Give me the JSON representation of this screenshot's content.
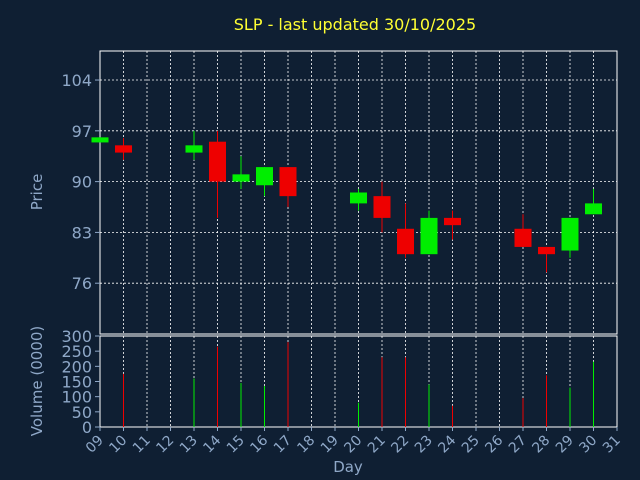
{
  "chart_data": {
    "type": "candlestick",
    "title": "SLP - last updated 30/10/2025",
    "ylabel": "Price",
    "volume_label": "Volume (0000)",
    "xlabel": "Day",
    "price_ticks": [
      "104",
      "97",
      "90",
      "83",
      "76"
    ],
    "price_ylim": [
      69,
      108
    ],
    "volume_ticks": [
      "300",
      "250",
      "200",
      "150",
      "100",
      "50",
      "0"
    ],
    "volume_ylim": [
      0,
      300
    ],
    "x_labels": [
      "09",
      "10",
      "11",
      "12",
      "13",
      "14",
      "15",
      "16",
      "17",
      "18",
      "19",
      "20",
      "21",
      "22",
      "23",
      "24",
      "25",
      "26",
      "27",
      "28",
      "29",
      "30",
      "31"
    ],
    "colors": {
      "up": "#00ee00",
      "down": "#ee0000",
      "background": "#0f1f33",
      "text": "#8fa8c8",
      "title": "#ffff33"
    },
    "candles": [
      {
        "day": "09",
        "open": 95.4,
        "close": 96.1,
        "high": 96.1,
        "low": 95.4,
        "volume": 0
      },
      {
        "day": "10",
        "open": 95.0,
        "close": 94.0,
        "high": 96.0,
        "low": 93.0,
        "volume": 175
      },
      {
        "day": "13",
        "open": 94.0,
        "close": 95.0,
        "high": 97.0,
        "low": 93.0,
        "volume": 160
      },
      {
        "day": "14",
        "open": 95.5,
        "close": 90.0,
        "high": 97.0,
        "low": 85.0,
        "volume": 265
      },
      {
        "day": "15",
        "open": 90.0,
        "close": 91.0,
        "high": 93.5,
        "low": 89.0,
        "volume": 145
      },
      {
        "day": "16",
        "open": 89.5,
        "close": 92.0,
        "high": 92.0,
        "low": 88.0,
        "volume": 135
      },
      {
        "day": "17",
        "open": 92.0,
        "close": 88.0,
        "high": 92.0,
        "low": 86.5,
        "volume": 280
      },
      {
        "day": "20",
        "open": 87.0,
        "close": 88.5,
        "high": 89.0,
        "low": 86.0,
        "volume": 80
      },
      {
        "day": "21",
        "open": 88.0,
        "close": 85.0,
        "high": 90.0,
        "low": 83.0,
        "volume": 230
      },
      {
        "day": "22",
        "open": 83.5,
        "close": 80.0,
        "high": 87.0,
        "low": 79.5,
        "volume": 230
      },
      {
        "day": "23",
        "open": 80.0,
        "close": 85.0,
        "high": 86.0,
        "low": 80.0,
        "volume": 140
      },
      {
        "day": "24",
        "open": 85.0,
        "close": 84.0,
        "high": 86.0,
        "low": 82.0,
        "volume": 70
      },
      {
        "day": "27",
        "open": 83.5,
        "close": 81.0,
        "high": 85.5,
        "low": 81.0,
        "volume": 95
      },
      {
        "day": "28",
        "open": 81.0,
        "close": 80.0,
        "high": 81.0,
        "low": 77.5,
        "volume": 170
      },
      {
        "day": "29",
        "open": 80.5,
        "close": 85.0,
        "high": 85.0,
        "low": 79.5,
        "volume": 130
      },
      {
        "day": "30",
        "open": 85.5,
        "close": 87.0,
        "high": 89.0,
        "low": 85.5,
        "volume": 215
      }
    ]
  }
}
